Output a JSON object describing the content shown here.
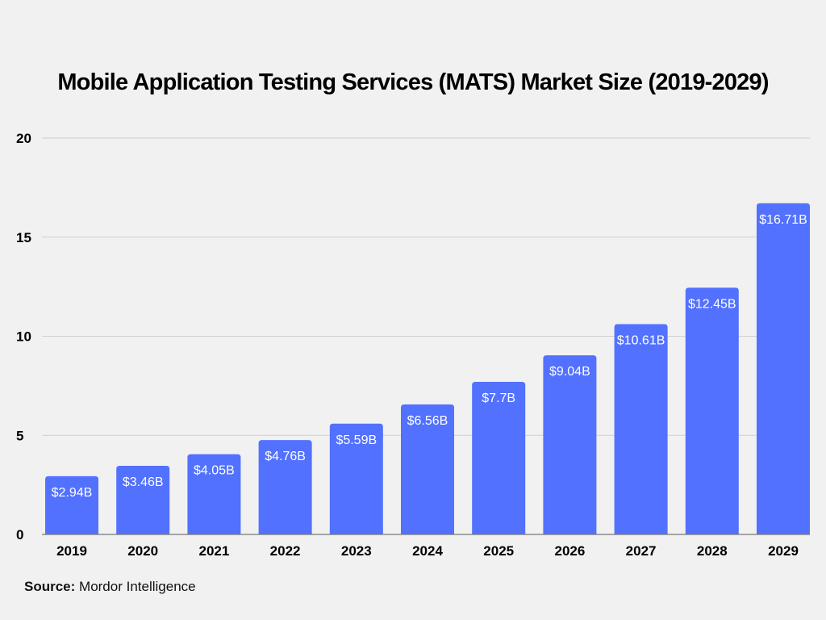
{
  "chart_data": {
    "type": "bar",
    "title": "Mobile Application Testing Services (MATS) Market Size (2019-2029)",
    "categories": [
      "2019",
      "2020",
      "2021",
      "2022",
      "2023",
      "2024",
      "2025",
      "2026",
      "2027",
      "2028",
      "2029"
    ],
    "values": [
      2.94,
      3.46,
      4.05,
      4.76,
      5.59,
      6.56,
      7.7,
      9.04,
      10.61,
      12.45,
      16.71
    ],
    "data_labels": [
      "$2.94B",
      "$3.46B",
      "$4.05B",
      "$4.76B",
      "$5.59B",
      "$6.56B",
      "$7.7B",
      "$9.04B",
      "$10.61B",
      "$12.45B",
      "$16.71B"
    ],
    "ylim": [
      0,
      20
    ],
    "yticks": [
      0,
      5,
      10,
      15,
      20
    ],
    "grid": true,
    "bar_color": "#5271ff",
    "xlabel": "",
    "ylabel": ""
  },
  "source": {
    "label": "Source:",
    "text": "Mordor Intelligence"
  }
}
